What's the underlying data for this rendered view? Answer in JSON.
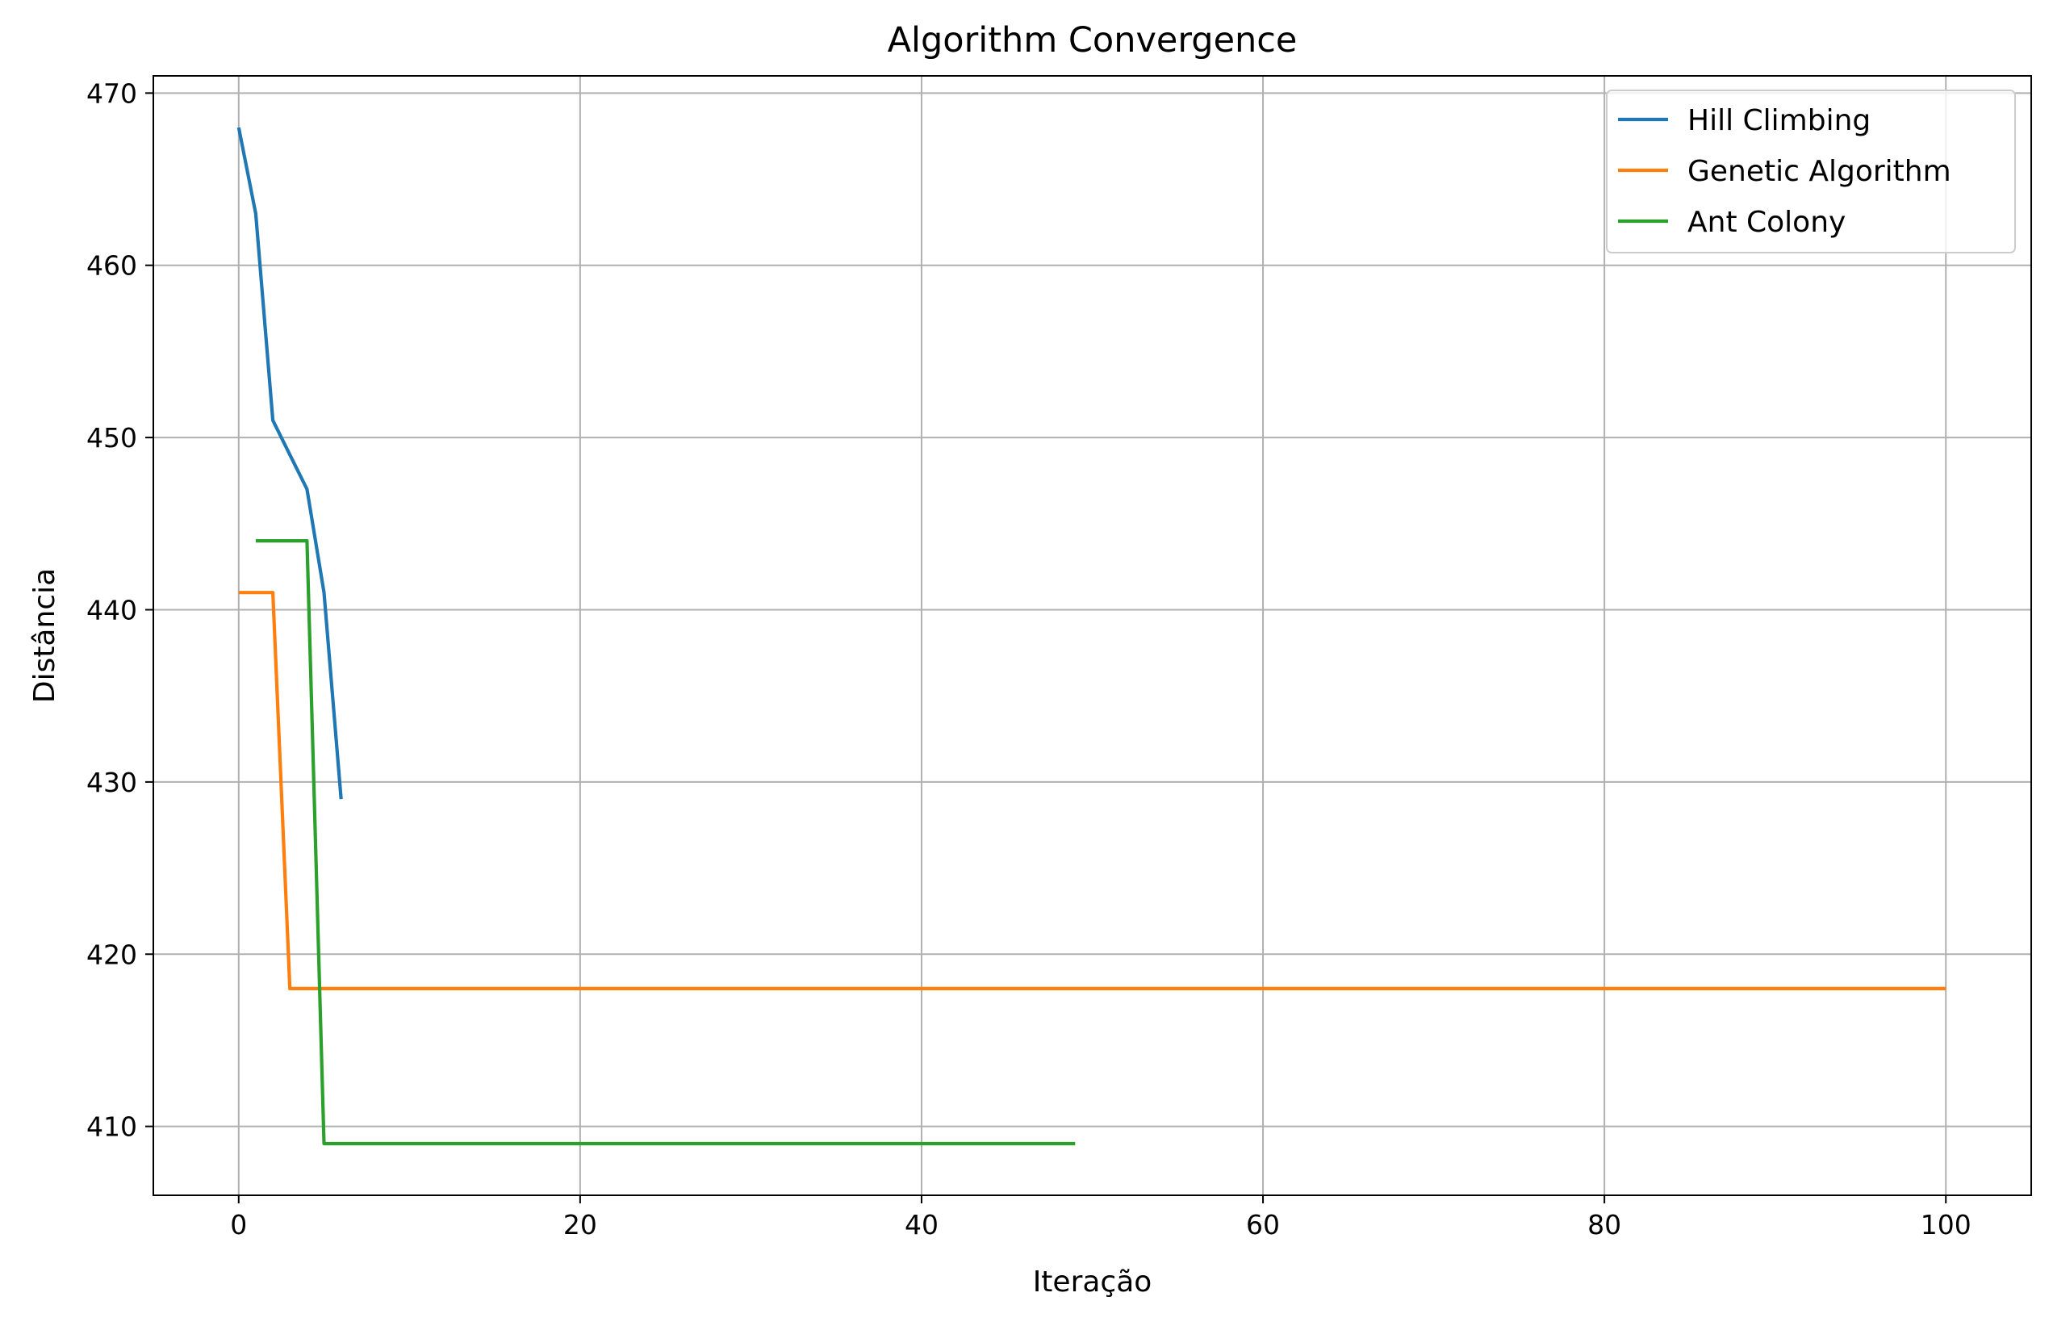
{
  "chart_data": {
    "type": "line",
    "title": "Algorithm Convergence",
    "xlabel": "Iteração",
    "ylabel": "Distância",
    "xlim": [
      -5,
      105
    ],
    "ylim": [
      406,
      471
    ],
    "xticks": [
      0,
      20,
      40,
      60,
      80,
      100
    ],
    "yticks": [
      410,
      420,
      430,
      440,
      450,
      460,
      470
    ],
    "grid": true,
    "legend_position": "top-right",
    "series": [
      {
        "name": "Hill Climbing",
        "color": "#1f77b4",
        "x": [
          0,
          1,
          2,
          3,
          4,
          5,
          6
        ],
        "y": [
          468,
          463,
          451,
          449,
          447,
          441,
          429
        ]
      },
      {
        "name": "Genetic Algorithm",
        "color": "#ff7f0e",
        "x": [
          0,
          1,
          2,
          3,
          4,
          10,
          20,
          30,
          40,
          50,
          60,
          70,
          80,
          90,
          100
        ],
        "y": [
          441,
          441,
          441,
          418,
          418,
          418,
          418,
          418,
          418,
          418,
          418,
          418,
          418,
          418,
          418
        ]
      },
      {
        "name": "Ant Colony",
        "color": "#2ca02c",
        "x": [
          1,
          2,
          3,
          4,
          5,
          10,
          20,
          30,
          40,
          49
        ],
        "y": [
          444,
          444,
          444,
          444,
          409,
          409,
          409,
          409,
          409,
          409
        ]
      }
    ]
  }
}
